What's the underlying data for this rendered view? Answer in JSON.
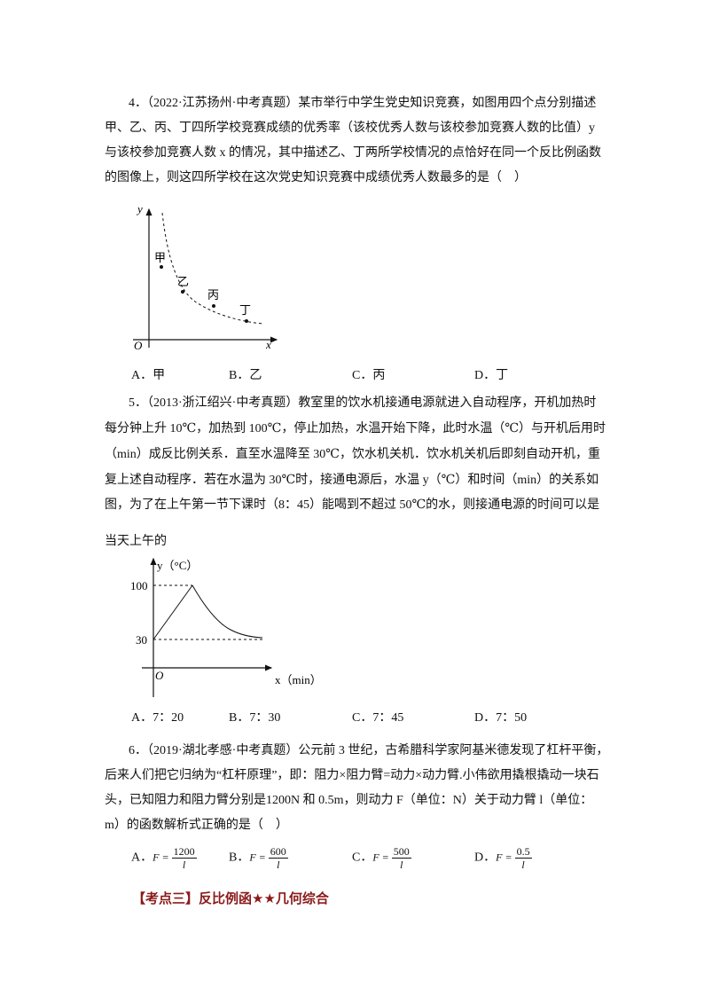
{
  "q4": {
    "lines": [
      "4．（2022·江苏扬州·中考真题）某市举行中学生党史知识竞赛，如图用四个点分别描述",
      "甲、乙、丙、丁四所学校竞赛成绩的优秀率（该校优秀人数与该校参加竞赛人数的比值）y",
      "与该校参加竞赛人数 x 的情况，其中描述乙、丁两所学校情况的点恰好在同一个反比例函数",
      "的图像上，则这四所学校在这次党史知识竞赛中成绩优秀人数最多的是（　）"
    ],
    "figure": {
      "y_label": "y",
      "x_label": "x",
      "origin": "O",
      "points": [
        "甲",
        "乙",
        "丙",
        "丁"
      ]
    },
    "options": [
      "A．甲",
      "B．乙",
      "C．丙",
      "D．丁"
    ]
  },
  "q5": {
    "lines": [
      "5．（2013·浙江绍兴·中考真题）教室里的饮水机接通电源就进入自动程序，开机加热时",
      "每分钟上升 10℃，加热到 100℃，停止加热，水温开始下降，此时水温（℃）与开机后用时",
      "（min）成反比例关系．直至水温降至 30℃，饮水机关机．饮水机关机后即刻自动开机，重",
      "复上述自动程序．若在水温为 30℃时，接通电源后，水温 y（℃）和时间（min）的关系如",
      "图，为了在上午第一节下课时（8：45）能喝到不超过 50℃的水，则接通电源的时间可以是",
      "当天上午的"
    ],
    "figure": {
      "y_label": "y（°C）",
      "x_label": "x（min）",
      "origin": "O",
      "y_ticks": [
        "100",
        "30"
      ]
    },
    "options": [
      "A．7：20",
      "B．7：30",
      "C．7：45",
      "D．7：50"
    ]
  },
  "q6": {
    "lines": [
      "6．（2019·湖北孝感·中考真题）公元前 3 世纪，古希腊科学家阿基米德发现了杠杆平衡，",
      "后来人们把它归纳为“杠杆原理”，即：阻力×阻力臂=动力×动力臂.小伟欲用撬根撬动一块石",
      "头，已知阻力和阻力臂分别是1200N 和 0.5m，则动力 F（单位：N）关于动力臂 l（单位：",
      "m）的函数解析式正确的是（　）"
    ],
    "options": [
      {
        "letter": "A．",
        "lhs": "F =",
        "num": "1200",
        "den": "l"
      },
      {
        "letter": "B．",
        "lhs": "F =",
        "num": "600",
        "den": "l"
      },
      {
        "letter": "C．",
        "lhs": "F =",
        "num": "500",
        "den": "l"
      },
      {
        "letter": "D．",
        "lhs": "F =",
        "num": "0.5",
        "den": "l"
      }
    ]
  },
  "section": {
    "title": "【考点三】反比例函★★几何综合",
    "color": "#8b1a1a"
  }
}
